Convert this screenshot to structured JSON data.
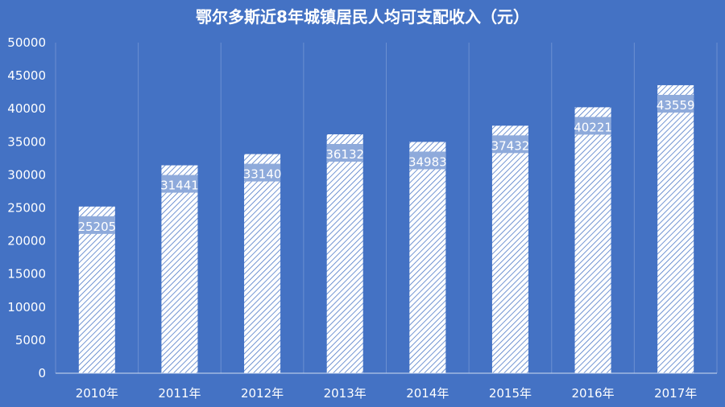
{
  "colors": {
    "background": "#4472c4",
    "bar_fill": "#ffffff",
    "bar_hatch": "#4472c4",
    "label_band": "#8eaadb",
    "gridline": "#6b8fd1",
    "axis_line": "#d0dcf0",
    "text": "#ffffff"
  },
  "chart_data": {
    "type": "bar",
    "title": "鄂尔多斯近8年城镇居民人均可支配收入（元）",
    "xlabel": "",
    "ylabel": "",
    "categories": [
      "2010年",
      "2011年",
      "2012年",
      "2013年",
      "2014年",
      "2015年",
      "2016年",
      "2017年"
    ],
    "values": [
      25205,
      31441,
      33140,
      36132,
      34983,
      37432,
      40221,
      43559
    ],
    "data_labels": [
      "25205",
      "31441",
      "33140",
      "36132",
      "34983",
      "37432",
      "40221",
      "43559"
    ],
    "ylim": [
      0,
      50000
    ],
    "yticks": [
      0,
      5000,
      10000,
      15000,
      20000,
      25000,
      30000,
      35000,
      40000,
      45000,
      50000
    ],
    "grid": "vertical",
    "legend": "none",
    "bar_pattern": "diagonal-hatch"
  }
}
